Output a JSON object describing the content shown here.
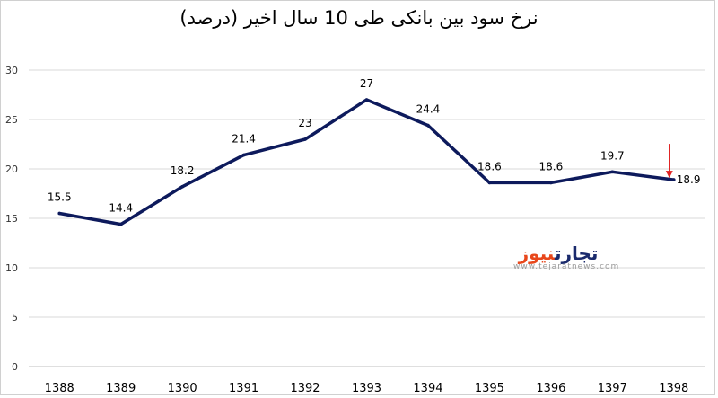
{
  "chart_data": {
    "type": "line",
    "title": "نرخ سود بین بانکی طی 10 سال اخیر (درصد)",
    "categories": [
      "1388",
      "1389",
      "1390",
      "1391",
      "1392",
      "1393",
      "1394",
      "1395",
      "1396",
      "1397",
      "1398"
    ],
    "values": [
      15.5,
      14.4,
      18.2,
      21.4,
      23,
      27,
      24.4,
      18.6,
      18.6,
      19.7,
      18.9
    ],
    "ylim": [
      0,
      30
    ],
    "yticks": [
      0,
      5,
      10,
      15,
      20,
      25,
      30
    ],
    "grid": true,
    "line_color": "#0d1a5c",
    "annotation": {
      "category": "1398",
      "marker": "down-arrow",
      "color": "#e02020"
    }
  },
  "watermark": {
    "word1": "تجارت",
    "word2": "نیوز",
    "url": "www.tejaratnews.com",
    "color1": "#1a2a6c",
    "color2": "#e8471b"
  }
}
